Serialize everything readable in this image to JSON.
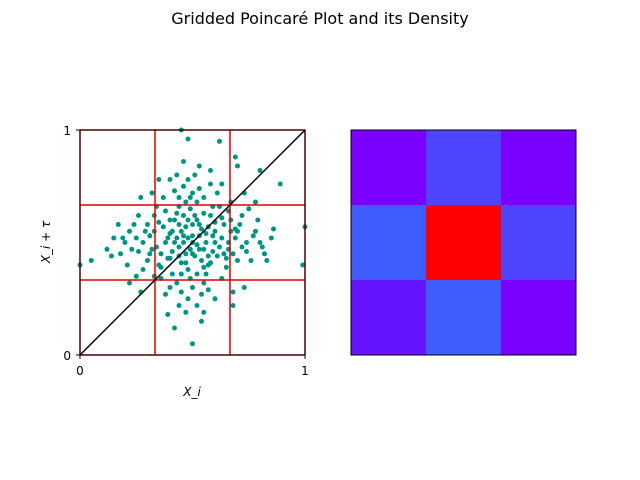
{
  "figure": {
    "title": "Gridded Poincaré Plot and its Density"
  },
  "chart_data": [
    {
      "type": "scatter",
      "title": "",
      "xlabel": "X_i",
      "ylabel": "X_i + τ",
      "xlim": [
        0,
        1
      ],
      "ylim": [
        0,
        1
      ],
      "xticks": [
        "0",
        "1"
      ],
      "yticks": [
        "0",
        "1"
      ],
      "grid": false,
      "point_color": "#009485",
      "grid_lines_color": "#e00000",
      "grid_lines": [
        0,
        0.3333,
        0.6667,
        1
      ],
      "identity_line": {
        "from": [
          0,
          0
        ],
        "to": [
          1,
          1
        ],
        "color": "#000000"
      },
      "points": [
        [
          0.4,
          0.43
        ],
        [
          0.45,
          0.55
        ],
        [
          0.5,
          0.5
        ],
        [
          0.52,
          0.6
        ],
        [
          0.48,
          0.52
        ],
        [
          0.55,
          0.47
        ],
        [
          0.6,
          0.55
        ],
        [
          0.42,
          0.6
        ],
        [
          0.47,
          0.45
        ],
        [
          0.53,
          0.53
        ],
        [
          0.58,
          0.62
        ],
        [
          0.38,
          0.5
        ],
        [
          0.44,
          0.48
        ],
        [
          0.5,
          0.58
        ],
        [
          0.56,
          0.5
        ],
        [
          0.62,
          0.48
        ],
        [
          0.46,
          0.62
        ],
        [
          0.51,
          0.44
        ],
        [
          0.41,
          0.55
        ],
        [
          0.57,
          0.57
        ],
        [
          0.49,
          0.65
        ],
        [
          0.54,
          0.42
        ],
        [
          0.43,
          0.52
        ],
        [
          0.59,
          0.53
        ],
        [
          0.36,
          0.45
        ],
        [
          0.64,
          0.58
        ],
        [
          0.48,
          0.38
        ],
        [
          0.52,
          0.68
        ],
        [
          0.45,
          0.41
        ],
        [
          0.55,
          0.63
        ],
        [
          0.4,
          0.6
        ],
        [
          0.61,
          0.44
        ],
        [
          0.47,
          0.57
        ],
        [
          0.53,
          0.47
        ],
        [
          0.5,
          0.53
        ],
        [
          0.44,
          0.66
        ],
        [
          0.57,
          0.4
        ],
        [
          0.39,
          0.52
        ],
        [
          0.63,
          0.52
        ],
        [
          0.46,
          0.5
        ],
        [
          0.34,
          0.48
        ],
        [
          0.31,
          0.53
        ],
        [
          0.28,
          0.5
        ],
        [
          0.26,
          0.46
        ],
        [
          0.3,
          0.42
        ],
        [
          0.33,
          0.55
        ],
        [
          0.25,
          0.52
        ],
        [
          0.32,
          0.47
        ],
        [
          0.29,
          0.55
        ],
        [
          0.35,
          0.4
        ],
        [
          0.66,
          0.5
        ],
        [
          0.68,
          0.45
        ],
        [
          0.7,
          0.55
        ],
        [
          0.67,
          0.6
        ],
        [
          0.72,
          0.48
        ],
        [
          0.65,
          0.43
        ],
        [
          0.69,
          0.52
        ],
        [
          0.71,
          0.58
        ],
        [
          0.74,
          0.5
        ],
        [
          0.66,
          0.47
        ],
        [
          0.5,
          0.3
        ],
        [
          0.45,
          0.28
        ],
        [
          0.55,
          0.32
        ],
        [
          0.48,
          0.25
        ],
        [
          0.52,
          0.22
        ],
        [
          0.43,
          0.32
        ],
        [
          0.57,
          0.29
        ],
        [
          0.4,
          0.3
        ],
        [
          0.49,
          0.34
        ],
        [
          0.54,
          0.27
        ],
        [
          0.5,
          0.72
        ],
        [
          0.46,
          0.75
        ],
        [
          0.55,
          0.7
        ],
        [
          0.42,
          0.73
        ],
        [
          0.58,
          0.76
        ],
        [
          0.48,
          0.78
        ],
        [
          0.53,
          0.74
        ],
        [
          0.44,
          0.7
        ],
        [
          0.61,
          0.72
        ],
        [
          0.51,
          0.8
        ],
        [
          0.2,
          0.5
        ],
        [
          0.18,
          0.45
        ],
        [
          0.22,
          0.55
        ],
        [
          0.15,
          0.52
        ],
        [
          0.8,
          0.5
        ],
        [
          0.82,
          0.45
        ],
        [
          0.78,
          0.55
        ],
        [
          0.85,
          0.52
        ],
        [
          0.22,
          0.32
        ],
        [
          0.25,
          0.35
        ],
        [
          0.78,
          0.68
        ],
        [
          0.75,
          0.65
        ],
        [
          0.27,
          0.7
        ],
        [
          0.73,
          0.3
        ],
        [
          0.5,
          0.05
        ],
        [
          0.45,
          1.0
        ],
        [
          0.48,
          0.96
        ],
        [
          0.05,
          0.42
        ],
        [
          0.0,
          0.4
        ],
        [
          0.99,
          0.4
        ],
        [
          1.0,
          0.57
        ],
        [
          0.89,
          0.76
        ],
        [
          0.8,
          0.82
        ],
        [
          0.7,
          0.84
        ],
        [
          0.69,
          0.88
        ],
        [
          0.62,
          0.95
        ],
        [
          0.36,
          0.34
        ],
        [
          0.38,
          0.27
        ],
        [
          0.42,
          0.12
        ],
        [
          0.55,
          0.19
        ],
        [
          0.68,
          0.22
        ],
        [
          0.12,
          0.47
        ],
        [
          0.41,
          0.46
        ],
        [
          0.56,
          0.54
        ],
        [
          0.44,
          0.58
        ],
        [
          0.59,
          0.46
        ],
        [
          0.37,
          0.57
        ],
        [
          0.63,
          0.61
        ],
        [
          0.47,
          0.41
        ],
        [
          0.52,
          0.49
        ],
        [
          0.49,
          0.47
        ],
        [
          0.54,
          0.56
        ],
        [
          0.39,
          0.43
        ],
        [
          0.6,
          0.59
        ],
        [
          0.43,
          0.63
        ],
        [
          0.58,
          0.41
        ],
        [
          0.46,
          0.53
        ],
        [
          0.51,
          0.62
        ],
        [
          0.35,
          0.59
        ],
        [
          0.65,
          0.39
        ],
        [
          0.62,
          0.66
        ],
        [
          0.38,
          0.64
        ],
        [
          0.45,
          0.36
        ],
        [
          0.56,
          0.36
        ],
        [
          0.33,
          0.62
        ],
        [
          0.67,
          0.55
        ],
        [
          0.5,
          0.45
        ],
        [
          0.48,
          0.6
        ],
        [
          0.53,
          0.58
        ],
        [
          0.42,
          0.5
        ],
        [
          0.57,
          0.44
        ],
        [
          0.44,
          0.44
        ],
        [
          0.6,
          0.5
        ],
        [
          0.4,
          0.54
        ],
        [
          0.36,
          0.39
        ],
        [
          0.64,
          0.45
        ],
        [
          0.47,
          0.68
        ],
        [
          0.55,
          0.39
        ],
        [
          0.3,
          0.58
        ],
        [
          0.7,
          0.42
        ],
        [
          0.34,
          0.66
        ],
        [
          0.66,
          0.64
        ],
        [
          0.28,
          0.38
        ],
        [
          0.72,
          0.62
        ],
        [
          0.24,
          0.58
        ],
        [
          0.76,
          0.42
        ],
        [
          0.37,
          0.7
        ],
        [
          0.63,
          0.34
        ],
        [
          0.41,
          0.36
        ],
        [
          0.59,
          0.66
        ],
        [
          0.52,
          0.36
        ],
        [
          0.49,
          0.7
        ],
        [
          0.31,
          0.45
        ],
        [
          0.69,
          0.56
        ],
        [
          0.26,
          0.62
        ],
        [
          0.74,
          0.46
        ],
        [
          0.33,
          0.35
        ],
        [
          0.67,
          0.68
        ],
        [
          0.43,
          0.8
        ],
        [
          0.58,
          0.82
        ],
        [
          0.4,
          0.78
        ],
        [
          0.53,
          0.84
        ],
        [
          0.46,
          0.86
        ],
        [
          0.35,
          0.78
        ],
        [
          0.63,
          0.76
        ],
        [
          0.47,
          0.19
        ],
        [
          0.54,
          0.15
        ],
        [
          0.44,
          0.22
        ],
        [
          0.6,
          0.25
        ],
        [
          0.39,
          0.18
        ],
        [
          0.21,
          0.4
        ],
        [
          0.79,
          0.6
        ],
        [
          0.17,
          0.58
        ],
        [
          0.83,
          0.42
        ],
        [
          0.23,
          0.47
        ],
        [
          0.77,
          0.53
        ],
        [
          0.19,
          0.52
        ],
        [
          0.81,
          0.48
        ],
        [
          0.14,
          0.44
        ],
        [
          0.86,
          0.56
        ],
        [
          0.27,
          0.28
        ],
        [
          0.73,
          0.72
        ],
        [
          0.32,
          0.72
        ],
        [
          0.68,
          0.28
        ]
      ]
    },
    {
      "type": "heatmap",
      "title": "",
      "rows": 3,
      "cols": 3,
      "axes_visible": false,
      "cells": [
        [
          "#7a00ff",
          "#5045ff",
          "#7a00ff"
        ],
        [
          "#3f5cff",
          "#ff0000",
          "#5045ff"
        ],
        [
          "#6414ff",
          "#3f5cff",
          "#7a00ff"
        ]
      ]
    }
  ]
}
